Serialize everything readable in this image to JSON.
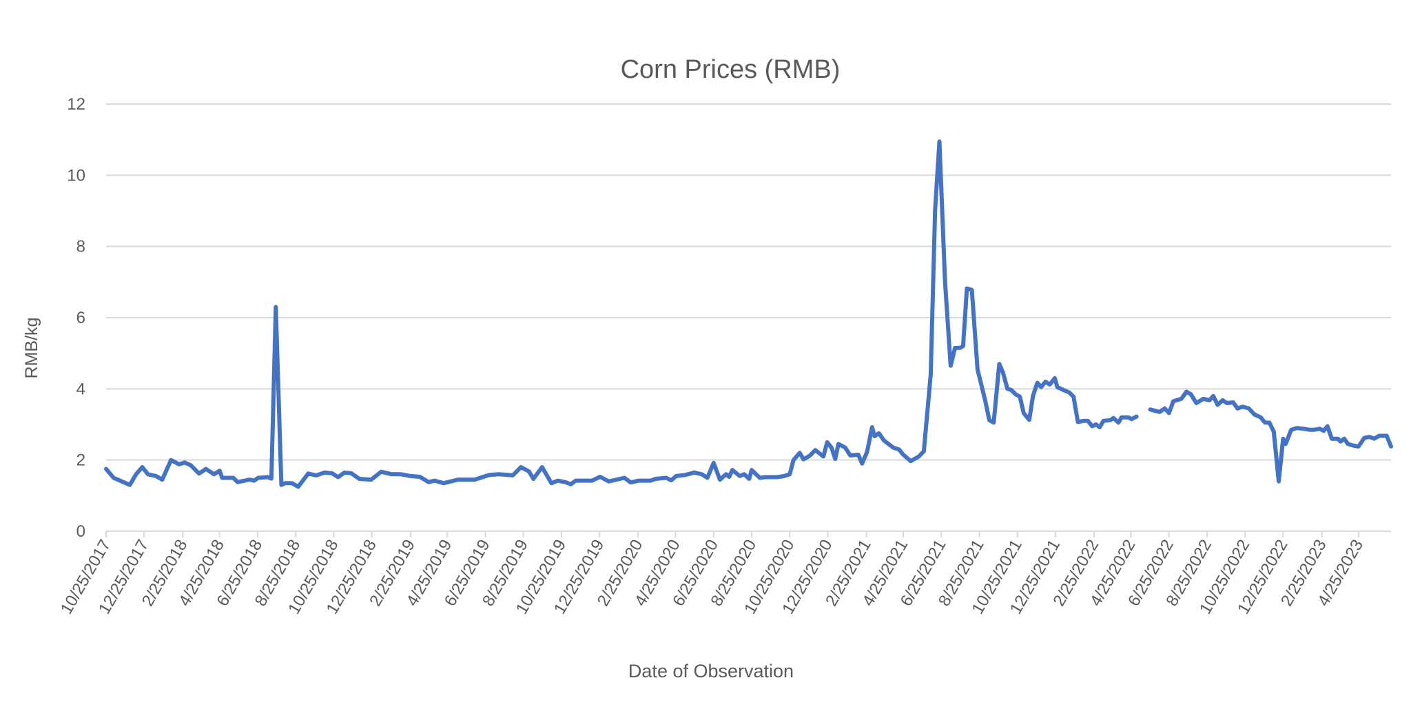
{
  "chart_data": {
    "type": "line",
    "title": "Corn Prices (RMB)",
    "xlabel": "Date of Observation",
    "ylabel": "RMB/kg",
    "ylim": [
      0,
      12
    ],
    "yticks": [
      0,
      2,
      4,
      6,
      8,
      10,
      12
    ],
    "xlim": [
      "2017-10-25",
      "2023-06-16"
    ],
    "xtick_labels": [
      "10/25/2017",
      "12/25/2017",
      "2/25/2018",
      "4/25/2018",
      "6/25/2018",
      "8/25/2018",
      "10/25/2018",
      "12/25/2018",
      "2/25/2019",
      "4/25/2019",
      "6/25/2019",
      "8/25/2019",
      "10/25/2019",
      "12/25/2019",
      "2/25/2020",
      "4/25/2020",
      "6/25/2020",
      "8/25/2020",
      "10/25/2020",
      "12/25/2020",
      "2/25/2021",
      "4/25/2021",
      "6/25/2021",
      "8/25/2021",
      "10/25/2021",
      "12/25/2021",
      "2/25/2022",
      "4/25/2022",
      "6/25/2022",
      "8/25/2022",
      "10/25/2022",
      "12/25/2022",
      "2/25/2023",
      "4/25/2023"
    ],
    "grid": true,
    "legend": "none",
    "line_color": "#4472C4",
    "series": [
      {
        "points": [
          [
            "2017-10-25",
            1.75
          ],
          [
            "2017-11-06",
            1.5
          ],
          [
            "2017-12-02",
            1.3
          ],
          [
            "2017-12-12",
            1.6
          ],
          [
            "2017-12-22",
            1.8
          ],
          [
            "2017-12-31",
            1.6
          ],
          [
            "2018-01-13",
            1.55
          ],
          [
            "2018-01-23",
            1.45
          ],
          [
            "2018-02-06",
            2.0
          ],
          [
            "2018-02-19",
            1.88
          ],
          [
            "2018-02-28",
            1.93
          ],
          [
            "2018-03-10",
            1.85
          ],
          [
            "2018-03-23",
            1.62
          ],
          [
            "2018-04-03",
            1.75
          ],
          [
            "2018-04-16",
            1.6
          ],
          [
            "2018-04-25",
            1.7
          ],
          [
            "2018-04-29",
            1.5
          ],
          [
            "2018-05-17",
            1.5
          ],
          [
            "2018-05-24",
            1.38
          ],
          [
            "2018-06-12",
            1.45
          ],
          [
            "2018-06-19",
            1.42
          ],
          [
            "2018-06-26",
            1.5
          ],
          [
            "2018-07-11",
            1.52
          ],
          [
            "2018-07-17",
            1.48
          ],
          [
            "2018-07-24",
            6.3
          ],
          [
            "2018-08-02",
            1.3
          ],
          [
            "2018-08-08",
            1.35
          ],
          [
            "2018-08-19",
            1.35
          ],
          [
            "2018-08-29",
            1.25
          ],
          [
            "2018-09-14",
            1.62
          ],
          [
            "2018-09-27",
            1.57
          ],
          [
            "2018-10-10",
            1.65
          ],
          [
            "2018-10-22",
            1.63
          ],
          [
            "2018-11-01",
            1.52
          ],
          [
            "2018-11-11",
            1.65
          ],
          [
            "2018-11-22",
            1.63
          ],
          [
            "2018-12-05",
            1.47
          ],
          [
            "2018-12-24",
            1.45
          ],
          [
            "2019-01-09",
            1.67
          ],
          [
            "2019-01-26",
            1.6
          ],
          [
            "2019-02-10",
            1.6
          ],
          [
            "2019-02-25",
            1.55
          ],
          [
            "2019-03-12",
            1.53
          ],
          [
            "2019-03-26",
            1.38
          ],
          [
            "2019-04-05",
            1.42
          ],
          [
            "2019-04-19",
            1.35
          ],
          [
            "2019-05-12",
            1.45
          ],
          [
            "2019-06-08",
            1.45
          ],
          [
            "2019-07-01",
            1.58
          ],
          [
            "2019-07-17",
            1.6
          ],
          [
            "2019-08-08",
            1.57
          ],
          [
            "2019-08-21",
            1.8
          ],
          [
            "2019-09-03",
            1.68
          ],
          [
            "2019-09-10",
            1.47
          ],
          [
            "2019-09-24",
            1.8
          ],
          [
            "2019-10-09",
            1.35
          ],
          [
            "2019-10-19",
            1.42
          ],
          [
            "2019-10-31",
            1.38
          ],
          [
            "2019-11-09",
            1.32
          ],
          [
            "2019-11-17",
            1.42
          ],
          [
            "2019-11-30",
            1.42
          ],
          [
            "2019-12-13",
            1.42
          ],
          [
            "2019-12-26",
            1.53
          ],
          [
            "2020-01-09",
            1.4
          ],
          [
            "2020-02-03",
            1.5
          ],
          [
            "2020-02-13",
            1.37
          ],
          [
            "2020-02-26",
            1.42
          ],
          [
            "2020-03-16",
            1.42
          ],
          [
            "2020-03-24",
            1.47
          ],
          [
            "2020-04-10",
            1.5
          ],
          [
            "2020-04-18",
            1.43
          ],
          [
            "2020-04-26",
            1.55
          ],
          [
            "2020-05-10",
            1.58
          ],
          [
            "2020-05-25",
            1.65
          ],
          [
            "2020-06-06",
            1.6
          ],
          [
            "2020-06-15",
            1.5
          ],
          [
            "2020-06-25",
            1.92
          ],
          [
            "2020-07-05",
            1.45
          ],
          [
            "2020-07-15",
            1.6
          ],
          [
            "2020-07-20",
            1.53
          ],
          [
            "2020-07-25",
            1.72
          ],
          [
            "2020-08-06",
            1.55
          ],
          [
            "2020-08-13",
            1.6
          ],
          [
            "2020-08-21",
            1.47
          ],
          [
            "2020-08-25",
            1.72
          ],
          [
            "2020-09-07",
            1.5
          ],
          [
            "2020-09-16",
            1.52
          ],
          [
            "2020-10-05",
            1.52
          ],
          [
            "2020-10-16",
            1.55
          ],
          [
            "2020-10-25",
            1.6
          ],
          [
            "2020-10-31",
            2.0
          ],
          [
            "2020-11-10",
            2.2
          ],
          [
            "2020-11-16",
            2.02
          ],
          [
            "2020-11-26",
            2.12
          ],
          [
            "2020-12-05",
            2.28
          ],
          [
            "2020-12-18",
            2.1
          ],
          [
            "2020-12-24",
            2.5
          ],
          [
            "2020-12-31",
            2.35
          ],
          [
            "2021-01-06",
            2.03
          ],
          [
            "2021-01-11",
            2.45
          ],
          [
            "2021-01-22",
            2.35
          ],
          [
            "2021-01-30",
            2.13
          ],
          [
            "2021-02-12",
            2.15
          ],
          [
            "2021-02-18",
            1.9
          ],
          [
            "2021-02-26",
            2.23
          ],
          [
            "2021-03-06",
            2.92
          ],
          [
            "2021-03-10",
            2.67
          ],
          [
            "2021-03-17",
            2.75
          ],
          [
            "2021-03-25",
            2.55
          ],
          [
            "2021-04-09",
            2.35
          ],
          [
            "2021-04-18",
            2.3
          ],
          [
            "2021-04-25",
            2.15
          ],
          [
            "2021-05-07",
            1.97
          ],
          [
            "2021-05-20",
            2.1
          ],
          [
            "2021-05-28",
            2.25
          ],
          [
            "2021-06-08",
            4.4
          ],
          [
            "2021-06-15",
            9.0
          ],
          [
            "2021-06-22",
            10.95
          ],
          [
            "2021-07-01",
            7.0
          ],
          [
            "2021-07-10",
            4.65
          ],
          [
            "2021-07-17",
            5.15
          ],
          [
            "2021-07-25",
            5.15
          ],
          [
            "2021-07-30",
            5.2
          ],
          [
            "2021-08-05",
            6.82
          ],
          [
            "2021-08-13",
            6.78
          ],
          [
            "2021-08-22",
            4.55
          ],
          [
            "2021-09-03",
            3.7
          ],
          [
            "2021-09-10",
            3.12
          ],
          [
            "2021-09-17",
            3.05
          ],
          [
            "2021-09-26",
            4.7
          ],
          [
            "2021-10-02",
            4.45
          ],
          [
            "2021-10-09",
            4.0
          ],
          [
            "2021-10-15",
            3.97
          ],
          [
            "2021-10-22",
            3.85
          ],
          [
            "2021-10-29",
            3.78
          ],
          [
            "2021-11-04",
            3.32
          ],
          [
            "2021-11-13",
            3.13
          ],
          [
            "2021-11-19",
            3.8
          ],
          [
            "2021-11-26",
            4.17
          ],
          [
            "2021-12-02",
            4.05
          ],
          [
            "2021-12-09",
            4.2
          ],
          [
            "2021-12-16",
            4.12
          ],
          [
            "2021-12-24",
            4.3
          ],
          [
            "2021-12-28",
            4.05
          ],
          [
            "2022-01-09",
            3.95
          ],
          [
            "2022-01-16",
            3.9
          ],
          [
            "2022-01-23",
            3.78
          ],
          [
            "2022-01-30",
            3.07
          ],
          [
            "2022-02-08",
            3.1
          ],
          [
            "2022-02-15",
            3.1
          ],
          [
            "2022-02-22",
            2.95
          ],
          [
            "2022-02-28",
            3.0
          ],
          [
            "2022-03-06",
            2.92
          ],
          [
            "2022-03-12",
            3.1
          ],
          [
            "2022-03-23",
            3.12
          ],
          [
            "2022-03-28",
            3.18
          ],
          [
            "2022-04-05",
            3.05
          ],
          [
            "2022-04-10",
            3.2
          ],
          [
            "2022-04-21",
            3.2
          ],
          [
            "2022-04-26",
            3.15
          ],
          [
            "2022-05-04",
            3.22
          ],
          [
            "2022-05-15",
            null
          ],
          [
            "2022-05-26",
            3.42
          ],
          [
            "2022-06-10",
            3.35
          ],
          [
            "2022-06-18",
            3.45
          ],
          [
            "2022-06-25",
            3.32
          ],
          [
            "2022-07-02",
            3.65
          ],
          [
            "2022-07-15",
            3.72
          ],
          [
            "2022-07-23",
            3.92
          ],
          [
            "2022-07-30",
            3.85
          ],
          [
            "2022-08-08",
            3.6
          ],
          [
            "2022-08-19",
            3.72
          ],
          [
            "2022-08-29",
            3.68
          ],
          [
            "2022-09-04",
            3.8
          ],
          [
            "2022-09-11",
            3.55
          ],
          [
            "2022-09-19",
            3.68
          ],
          [
            "2022-09-26",
            3.6
          ],
          [
            "2022-10-06",
            3.62
          ],
          [
            "2022-10-13",
            3.45
          ],
          [
            "2022-10-21",
            3.5
          ],
          [
            "2022-10-31",
            3.45
          ],
          [
            "2022-11-09",
            3.28
          ],
          [
            "2022-11-19",
            3.2
          ],
          [
            "2022-11-26",
            3.05
          ],
          [
            "2022-12-03",
            3.05
          ],
          [
            "2022-12-10",
            2.8
          ],
          [
            "2022-12-18",
            1.4
          ],
          [
            "2022-12-25",
            2.6
          ],
          [
            "2022-12-29",
            2.45
          ],
          [
            "2023-01-07",
            2.85
          ],
          [
            "2023-01-16",
            2.9
          ],
          [
            "2023-01-26",
            2.88
          ],
          [
            "2023-02-06",
            2.85
          ],
          [
            "2023-02-13",
            2.85
          ],
          [
            "2023-02-22",
            2.88
          ],
          [
            "2023-02-28",
            2.82
          ],
          [
            "2023-03-06",
            2.95
          ],
          [
            "2023-03-13",
            2.6
          ],
          [
            "2023-03-23",
            2.6
          ],
          [
            "2023-03-27",
            2.52
          ],
          [
            "2023-04-02",
            2.6
          ],
          [
            "2023-04-08",
            2.45
          ],
          [
            "2023-04-18",
            2.4
          ],
          [
            "2023-04-25",
            2.38
          ],
          [
            "2023-05-04",
            2.62
          ],
          [
            "2023-05-12",
            2.65
          ],
          [
            "2023-05-20",
            2.6
          ],
          [
            "2023-05-28",
            2.68
          ],
          [
            "2023-06-09",
            2.68
          ],
          [
            "2023-06-16",
            2.38
          ]
        ]
      }
    ]
  }
}
